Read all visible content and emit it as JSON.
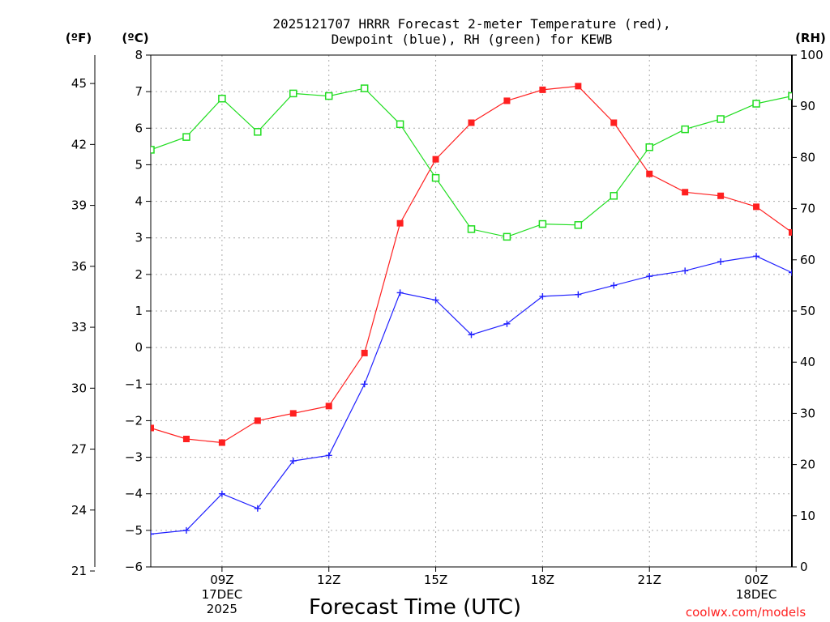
{
  "chart_data": {
    "type": "line",
    "title_line1": "2025121707 HRRR Forecast 2-meter Temperature (red),",
    "title_line2": "Dewpoint (blue), RH (green) for KEWB",
    "xlabel": "Forecast Time (UTC)",
    "credit": "coolwx.com/models",
    "units": {
      "fahrenheit": "(ºF)",
      "celsius": "(ºC)",
      "rh": "(RH)"
    },
    "x_hours": [
      7,
      8,
      9,
      10,
      11,
      12,
      13,
      14,
      15,
      16,
      17,
      18,
      19,
      20,
      21,
      22,
      23,
      24,
      25
    ],
    "xlim": [
      7,
      25
    ],
    "x_ticks": [
      {
        "hour": 9,
        "label": "09Z",
        "sub1": "17DEC",
        "sub2": "2025"
      },
      {
        "hour": 12,
        "label": "12Z",
        "sub1": "",
        "sub2": ""
      },
      {
        "hour": 15,
        "label": "15Z",
        "sub1": "",
        "sub2": ""
      },
      {
        "hour": 18,
        "label": "18Z",
        "sub1": "",
        "sub2": ""
      },
      {
        "hour": 21,
        "label": "21Z",
        "sub1": "",
        "sub2": ""
      },
      {
        "hour": 24,
        "label": "00Z",
        "sub1": "18DEC",
        "sub2": ""
      }
    ],
    "ylim_c": [
      -6,
      8
    ],
    "c_ticks": [
      "-6",
      "-5",
      "-4",
      "-3",
      "-2",
      "-1",
      "0",
      "1",
      "2",
      "3",
      "4",
      "5",
      "6",
      "7",
      "8"
    ],
    "f_ticks": [
      "21",
      "24",
      "27",
      "30",
      "33",
      "36",
      "39",
      "42",
      "45"
    ],
    "ylim_rh": [
      0,
      100
    ],
    "rh_ticks": [
      "0",
      "10",
      "20",
      "30",
      "40",
      "50",
      "60",
      "70",
      "80",
      "90",
      "100"
    ],
    "series": [
      {
        "name": "Temperature",
        "color": "#ff2020",
        "marker": "filled-square",
        "values": [
          -2.2,
          -2.5,
          -2.6,
          -2.0,
          -1.8,
          -1.6,
          -0.15,
          3.4,
          5.15,
          6.15,
          6.75,
          7.05,
          7.15,
          6.15,
          4.75,
          4.25,
          4.15,
          3.85,
          3.15
        ]
      },
      {
        "name": "Dewpoint",
        "color": "#2020ff",
        "marker": "plus",
        "values": [
          -5.1,
          -5.0,
          -4.0,
          -4.4,
          -3.1,
          -2.95,
          -1.0,
          1.5,
          1.3,
          0.35,
          0.65,
          1.4,
          1.45,
          1.7,
          1.95,
          2.1,
          2.35,
          2.5,
          2.05
        ]
      },
      {
        "name": "RH",
        "color": "#20dd20",
        "marker": "open-square",
        "axis": "rh",
        "values": [
          81.5,
          84,
          91.5,
          85,
          92.5,
          92,
          93.5,
          86.5,
          76,
          66,
          64.5,
          67,
          66.8,
          72.5,
          82,
          85.5,
          87.5,
          90.5,
          92
        ]
      }
    ]
  }
}
